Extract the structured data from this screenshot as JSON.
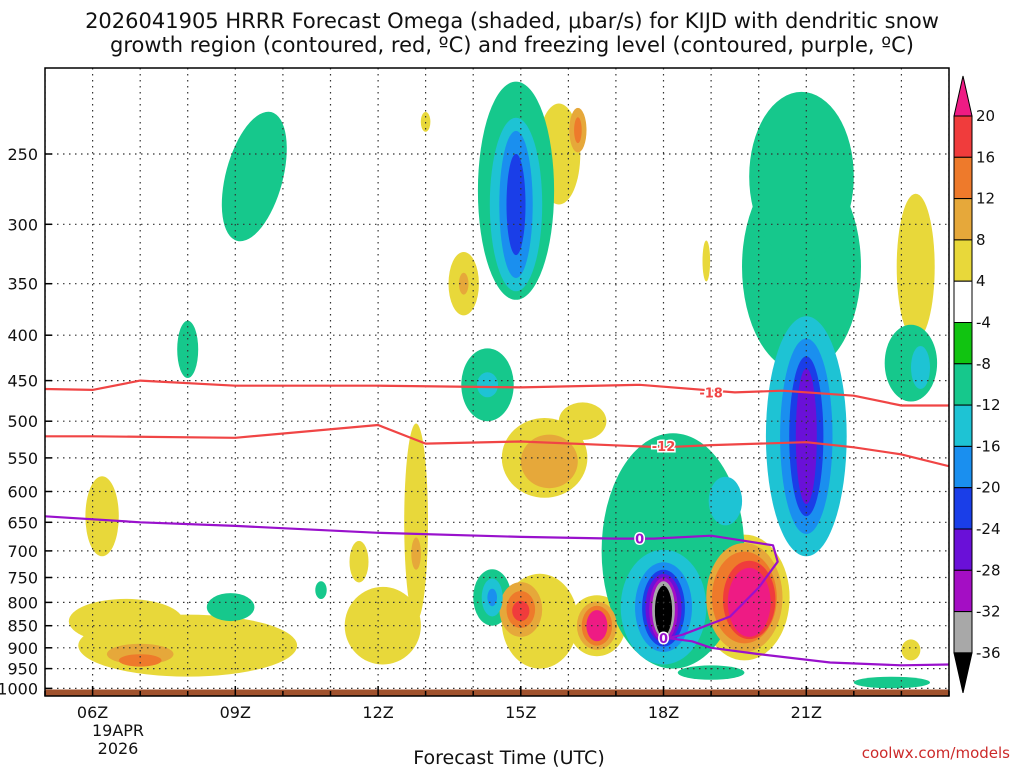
{
  "chart_data": {
    "type": "heatmap",
    "title_lines": [
      "2026041905 HRRR Forecast Omega (shaded, μbar/s) for KIJD with dendritic snow",
      "growth region (contoured, red, ºC) and freezing level (contoured, purple, ºC)"
    ],
    "xlabel": "Forecast Time (UTC)",
    "ylabel": "",
    "x_ticks": [
      "06Z",
      "09Z",
      "12Z",
      "15Z",
      "18Z",
      "21Z"
    ],
    "x_ticks_hours": [
      6,
      9,
      12,
      15,
      18,
      21
    ],
    "x_range_hours": [
      5,
      24
    ],
    "date_label": [
      "19APR",
      "2026"
    ],
    "y_ticks": [
      250,
      300,
      350,
      400,
      450,
      500,
      550,
      600,
      650,
      700,
      750,
      800,
      850,
      900,
      950,
      1000
    ],
    "y_range_mb": [
      200,
      1020
    ],
    "y_scale": "log-pressure, inverted",
    "colorbar": {
      "labels": [
        "20",
        "16",
        "12",
        "8",
        "4",
        "-4",
        "-8",
        "-12",
        "-16",
        "-20",
        "-24",
        "-28",
        "-32",
        "-36"
      ],
      "values": [
        20,
        16,
        12,
        8,
        4,
        -4,
        -8,
        -12,
        -16,
        -20,
        -24,
        -28,
        -32,
        -36
      ],
      "bins": [
        {
          "range": [
            20,
            99
          ],
          "color": "#ee1b84"
        },
        {
          "range": [
            16,
            20
          ],
          "color": "#f03c3c"
        },
        {
          "range": [
            12,
            16
          ],
          "color": "#ee7a2b"
        },
        {
          "range": [
            8,
            12
          ],
          "color": "#e6a83a"
        },
        {
          "range": [
            4,
            8
          ],
          "color": "#e8d83a"
        },
        {
          "range": [
            -4,
            4
          ],
          "color": "#ffffff"
        },
        {
          "range": [
            -8,
            -4
          ],
          "color": "#11c411"
        },
        {
          "range": [
            -12,
            -8
          ],
          "color": "#16c88c"
        },
        {
          "range": [
            -16,
            -12
          ],
          "color": "#1ec3d4"
        },
        {
          "range": [
            -20,
            -16
          ],
          "color": "#1a8fef"
        },
        {
          "range": [
            -24,
            -20
          ],
          "color": "#1a3ee8"
        },
        {
          "range": [
            -28,
            -24
          ],
          "color": "#6a10d8"
        },
        {
          "range": [
            -32,
            -28
          ],
          "color": "#a40ec4"
        },
        {
          "range": [
            -36,
            -32
          ],
          "color": "#a8a8a8"
        },
        {
          "range": [
            -99,
            -36
          ],
          "color": "#000000"
        }
      ]
    },
    "contours": [
      {
        "name": "dendritic -18C",
        "label": "-18",
        "color": "#f04545",
        "points": [
          [
            5,
            460
          ],
          [
            6,
            461
          ],
          [
            7,
            450
          ],
          [
            9,
            456
          ],
          [
            12,
            456
          ],
          [
            15,
            458
          ],
          [
            17.5,
            455
          ],
          [
            19.5,
            464
          ],
          [
            20.5,
            462
          ],
          [
            22,
            468
          ],
          [
            23,
            480
          ],
          [
            24,
            480
          ]
        ]
      },
      {
        "name": "dendritic -12C",
        "label": "-12",
        "color": "#f04545",
        "points": [
          [
            5,
            520
          ],
          [
            6,
            520
          ],
          [
            9,
            522
          ],
          [
            12,
            505
          ],
          [
            13,
            530
          ],
          [
            15,
            527
          ],
          [
            18,
            535
          ],
          [
            19,
            532
          ],
          [
            21,
            528
          ],
          [
            22,
            535
          ],
          [
            23,
            545
          ],
          [
            24,
            562
          ]
        ]
      },
      {
        "name": "freezing level 0C",
        "label": "0",
        "color": "#9911cc",
        "points": [
          [
            5,
            640
          ],
          [
            7,
            650
          ],
          [
            9,
            656
          ],
          [
            12,
            668
          ],
          [
            15,
            675
          ],
          [
            17,
            678
          ],
          [
            17.8,
            678
          ],
          [
            19,
            673
          ],
          [
            20.3,
            690
          ],
          [
            20.4,
            720
          ],
          [
            20,
            770
          ],
          [
            19.4,
            830
          ],
          [
            18.4,
            870
          ],
          [
            18.1,
            878
          ],
          [
            18.6,
            885
          ],
          [
            19,
            900
          ],
          [
            20,
            915
          ],
          [
            21.5,
            935
          ],
          [
            23,
            942
          ],
          [
            24,
            940
          ]
        ]
      }
    ],
    "contour_labels": [
      {
        "text": "-18",
        "hour": 19.0,
        "mb": 464
      },
      {
        "text": "-12",
        "hour": 18.0,
        "mb": 533
      },
      {
        "text": "0",
        "hour": 17.5,
        "mb": 678
      },
      {
        "text": "0",
        "hour": 18.0,
        "mb": 878
      }
    ],
    "omega_cells": [
      {
        "hour": 9.4,
        "mb": 265,
        "rh": 0.6,
        "rv_mb": 50,
        "rot": 15,
        "max_level": -8
      },
      {
        "hour": 8.0,
        "mb": 415,
        "rh": 0.22,
        "rv_mb": 32,
        "rot": 0,
        "max_level": -8
      },
      {
        "hour": 8.9,
        "mb": 810,
        "rh": 0.5,
        "rv_mb": 30,
        "rot": 0,
        "max_level": -8
      },
      {
        "hour": 10.8,
        "mb": 775,
        "rh": 0.12,
        "rv_mb": 18,
        "rot": 0,
        "max_level": -8
      },
      {
        "hour": 13.0,
        "mb": 230,
        "rh": 0.1,
        "rv_mb": 6,
        "rot": 0,
        "max_level": 4
      },
      {
        "hour": 14.9,
        "mb": 275,
        "rh": 0.8,
        "rv_mb": 90,
        "rot": 0,
        "max_level": -8
      },
      {
        "hour": 14.9,
        "mb": 285,
        "rh": 0.55,
        "rv_mb": 72,
        "rot": 0,
        "max_level": -12
      },
      {
        "hour": 14.9,
        "mb": 285,
        "rh": 0.35,
        "rv_mb": 60,
        "rot": 0,
        "max_level": -16
      },
      {
        "hour": 14.9,
        "mb": 285,
        "rh": 0.2,
        "rv_mb": 40,
        "rot": 0,
        "max_level": -20
      },
      {
        "hour": 14.3,
        "mb": 455,
        "rh": 0.55,
        "rv_mb": 45,
        "rot": 0,
        "max_level": -8
      },
      {
        "hour": 14.3,
        "mb": 455,
        "rh": 0.22,
        "rv_mb": 15,
        "rot": 0,
        "max_level": -12
      },
      {
        "hour": 14.4,
        "mb": 790,
        "rh": 0.4,
        "rv_mb": 60,
        "rot": 0,
        "max_level": -8
      },
      {
        "hour": 14.4,
        "mb": 790,
        "rh": 0.22,
        "rv_mb": 40,
        "rot": 0,
        "max_level": -12
      },
      {
        "hour": 14.4,
        "mb": 790,
        "rh": 0.1,
        "rv_mb": 18,
        "rot": 0,
        "max_level": -16
      },
      {
        "hour": 20.9,
        "mb": 335,
        "rh": 1.25,
        "rv_mb": 105,
        "rot": 0,
        "max_level": -8
      },
      {
        "hour": 20.9,
        "mb": 265,
        "rh": 1.1,
        "rv_mb": 65,
        "rot": 0,
        "max_level": -8
      },
      {
        "hour": 18.2,
        "mb": 700,
        "rh": 1.5,
        "rv_mb": 250,
        "rot": 0,
        "max_level": -8
      },
      {
        "hour": 18.0,
        "mb": 810,
        "rh": 0.9,
        "rv_mb": 130,
        "rot": 0,
        "max_level": -12
      },
      {
        "hour": 18.0,
        "mb": 810,
        "rh": 0.6,
        "rv_mb": 100,
        "rot": 0,
        "max_level": -16
      },
      {
        "hour": 18.0,
        "mb": 812,
        "rh": 0.45,
        "rv_mb": 85,
        "rot": 0,
        "max_level": -20
      },
      {
        "hour": 18.0,
        "mb": 812,
        "rh": 0.38,
        "rv_mb": 75,
        "rot": 0,
        "max_level": -24
      },
      {
        "hour": 18.0,
        "mb": 815,
        "rh": 0.3,
        "rv_mb": 70,
        "rot": 0,
        "max_level": -28
      },
      {
        "hour": 18.0,
        "mb": 815,
        "rh": 0.24,
        "rv_mb": 62,
        "rot": 0,
        "max_level": -32
      },
      {
        "hour": 18.0,
        "mb": 818,
        "rh": 0.18,
        "rv_mb": 55,
        "rot": 0,
        "max_level": -36
      },
      {
        "hour": 21.0,
        "mb": 520,
        "rh": 0.85,
        "rv_mb": 190,
        "rot": 0,
        "max_level": -12
      },
      {
        "hour": 21.0,
        "mb": 520,
        "rh": 0.55,
        "rv_mb": 150,
        "rot": 0,
        "max_level": -16
      },
      {
        "hour": 21.0,
        "mb": 520,
        "rh": 0.36,
        "rv_mb": 120,
        "rot": 0,
        "max_level": -20
      },
      {
        "hour": 21.0,
        "mb": 520,
        "rh": 0.22,
        "rv_mb": 100,
        "rot": 0,
        "max_level": -24
      },
      {
        "hour": 19.3,
        "mb": 615,
        "rh": 0.35,
        "rv_mb": 40,
        "rot": 0,
        "max_level": -12
      },
      {
        "hour": 23.2,
        "mb": 430,
        "rh": 0.55,
        "rv_mb": 45,
        "rot": 0,
        "max_level": -8
      },
      {
        "hour": 23.4,
        "mb": 435,
        "rh": 0.2,
        "rv_mb": 25,
        "rot": 0,
        "max_level": -12
      },
      {
        "hour": 19.0,
        "mb": 960,
        "rh": 0.7,
        "rv_mb": 18,
        "rot": 0,
        "max_level": -8
      },
      {
        "hour": 22.8,
        "mb": 985,
        "rh": 0.8,
        "rv_mb": 15,
        "rot": 0,
        "max_level": -8
      },
      {
        "hour": 8.0,
        "mb": 895,
        "rh": 2.3,
        "rv_mb": 75,
        "rot": 0,
        "max_level": 4
      },
      {
        "hour": 6.7,
        "mb": 840,
        "rh": 1.2,
        "rv_mb": 50,
        "rot": 0,
        "max_level": 4
      },
      {
        "hour": 6.2,
        "mb": 640,
        "rh": 0.35,
        "rv_mb": 70,
        "rot": 0,
        "max_level": 4
      },
      {
        "hour": 7.0,
        "mb": 915,
        "rh": 0.7,
        "rv_mb": 25,
        "rot": 0,
        "max_level": 8
      },
      {
        "hour": 7.0,
        "mb": 930,
        "rh": 0.45,
        "rv_mb": 15,
        "rot": 0,
        "max_level": 12
      },
      {
        "hour": 12.1,
        "mb": 850,
        "rh": 0.8,
        "rv_mb": 90,
        "rot": 0,
        "max_level": 4
      },
      {
        "hour": 12.8,
        "mb": 650,
        "rh": 0.25,
        "rv_mb": 190,
        "rot": 0,
        "max_level": 4
      },
      {
        "hour": 11.6,
        "mb": 720,
        "rh": 0.2,
        "rv_mb": 40,
        "rot": 0,
        "max_level": 4
      },
      {
        "hour": 12.8,
        "mb": 705,
        "rh": 0.1,
        "rv_mb": 30,
        "rot": 0,
        "max_level": 8
      },
      {
        "hour": 13.8,
        "mb": 350,
        "rh": 0.32,
        "rv_mb": 30,
        "rot": 0,
        "max_level": 4
      },
      {
        "hour": 13.8,
        "mb": 350,
        "rh": 0.1,
        "rv_mb": 10,
        "rot": 0,
        "max_level": 8
      },
      {
        "hour": 15.5,
        "mb": 550,
        "rh": 0.9,
        "rv_mb": 60,
        "rot": 0,
        "max_level": 4
      },
      {
        "hour": 15.6,
        "mb": 555,
        "rh": 0.6,
        "rv_mb": 40,
        "rot": 0,
        "max_level": 8
      },
      {
        "hour": 16.3,
        "mb": 500,
        "rh": 0.5,
        "rv_mb": 25,
        "rot": 0,
        "max_level": 4
      },
      {
        "hour": 15.8,
        "mb": 250,
        "rh": 0.45,
        "rv_mb": 35,
        "rot": 0,
        "max_level": 4
      },
      {
        "hour": 16.2,
        "mb": 235,
        "rh": 0.18,
        "rv_mb": 14,
        "rot": 0,
        "max_level": 8
      },
      {
        "hour": 16.2,
        "mb": 235,
        "rh": 0.08,
        "rv_mb": 8,
        "rot": 0,
        "max_level": 12
      },
      {
        "hour": 15.4,
        "mb": 840,
        "rh": 0.8,
        "rv_mb": 110,
        "rot": 0,
        "max_level": 4
      },
      {
        "hour": 15.0,
        "mb": 815,
        "rh": 0.45,
        "rv_mb": 60,
        "rot": 0,
        "max_level": 8
      },
      {
        "hour": 15.0,
        "mb": 815,
        "rh": 0.3,
        "rv_mb": 40,
        "rot": 0,
        "max_level": 12
      },
      {
        "hour": 15.0,
        "mb": 818,
        "rh": 0.18,
        "rv_mb": 22,
        "rot": 0,
        "max_level": 16
      },
      {
        "hour": 16.6,
        "mb": 850,
        "rh": 0.6,
        "rv_mb": 70,
        "rot": 0,
        "max_level": 4
      },
      {
        "hour": 16.6,
        "mb": 850,
        "rh": 0.42,
        "rv_mb": 55,
        "rot": 0,
        "max_level": 8
      },
      {
        "hour": 16.6,
        "mb": 850,
        "rh": 0.32,
        "rv_mb": 45,
        "rot": 0,
        "max_level": 12
      },
      {
        "hour": 16.6,
        "mb": 850,
        "rh": 0.22,
        "rv_mb": 35,
        "rot": 0,
        "max_level": 20
      },
      {
        "hour": 19.7,
        "mb": 790,
        "rh": 0.95,
        "rv_mb": 140,
        "rot": 0,
        "max_level": 4
      },
      {
        "hour": 19.7,
        "mb": 790,
        "rh": 0.8,
        "rv_mb": 120,
        "rot": 0,
        "max_level": 8
      },
      {
        "hour": 19.7,
        "mb": 790,
        "rh": 0.68,
        "rv_mb": 100,
        "rot": 0,
        "max_level": 12
      },
      {
        "hour": 19.8,
        "mb": 795,
        "rh": 0.55,
        "rv_mb": 85,
        "rot": 0,
        "max_level": 16
      },
      {
        "hour": 19.8,
        "mb": 800,
        "rh": 0.45,
        "rv_mb": 75,
        "rot": 0,
        "max_level": 20
      },
      {
        "hour": 18.9,
        "mb": 330,
        "rh": 0.08,
        "rv_mb": 18,
        "rot": 0,
        "max_level": 4
      },
      {
        "hour": 21.0,
        "mb": 345,
        "rh": 0.2,
        "rv_mb": 28,
        "rot": 0,
        "max_level": 4
      },
      {
        "hour": 23.3,
        "mb": 335,
        "rh": 0.4,
        "rv_mb": 70,
        "rot": 0,
        "max_level": 4
      },
      {
        "hour": 23.2,
        "mb": 905,
        "rh": 0.2,
        "rv_mb": 25,
        "rot": 0,
        "max_level": 4
      }
    ],
    "terrain_color": "#a0522d",
    "legend_placement": "right"
  },
  "credit": "coolwx.com/models"
}
